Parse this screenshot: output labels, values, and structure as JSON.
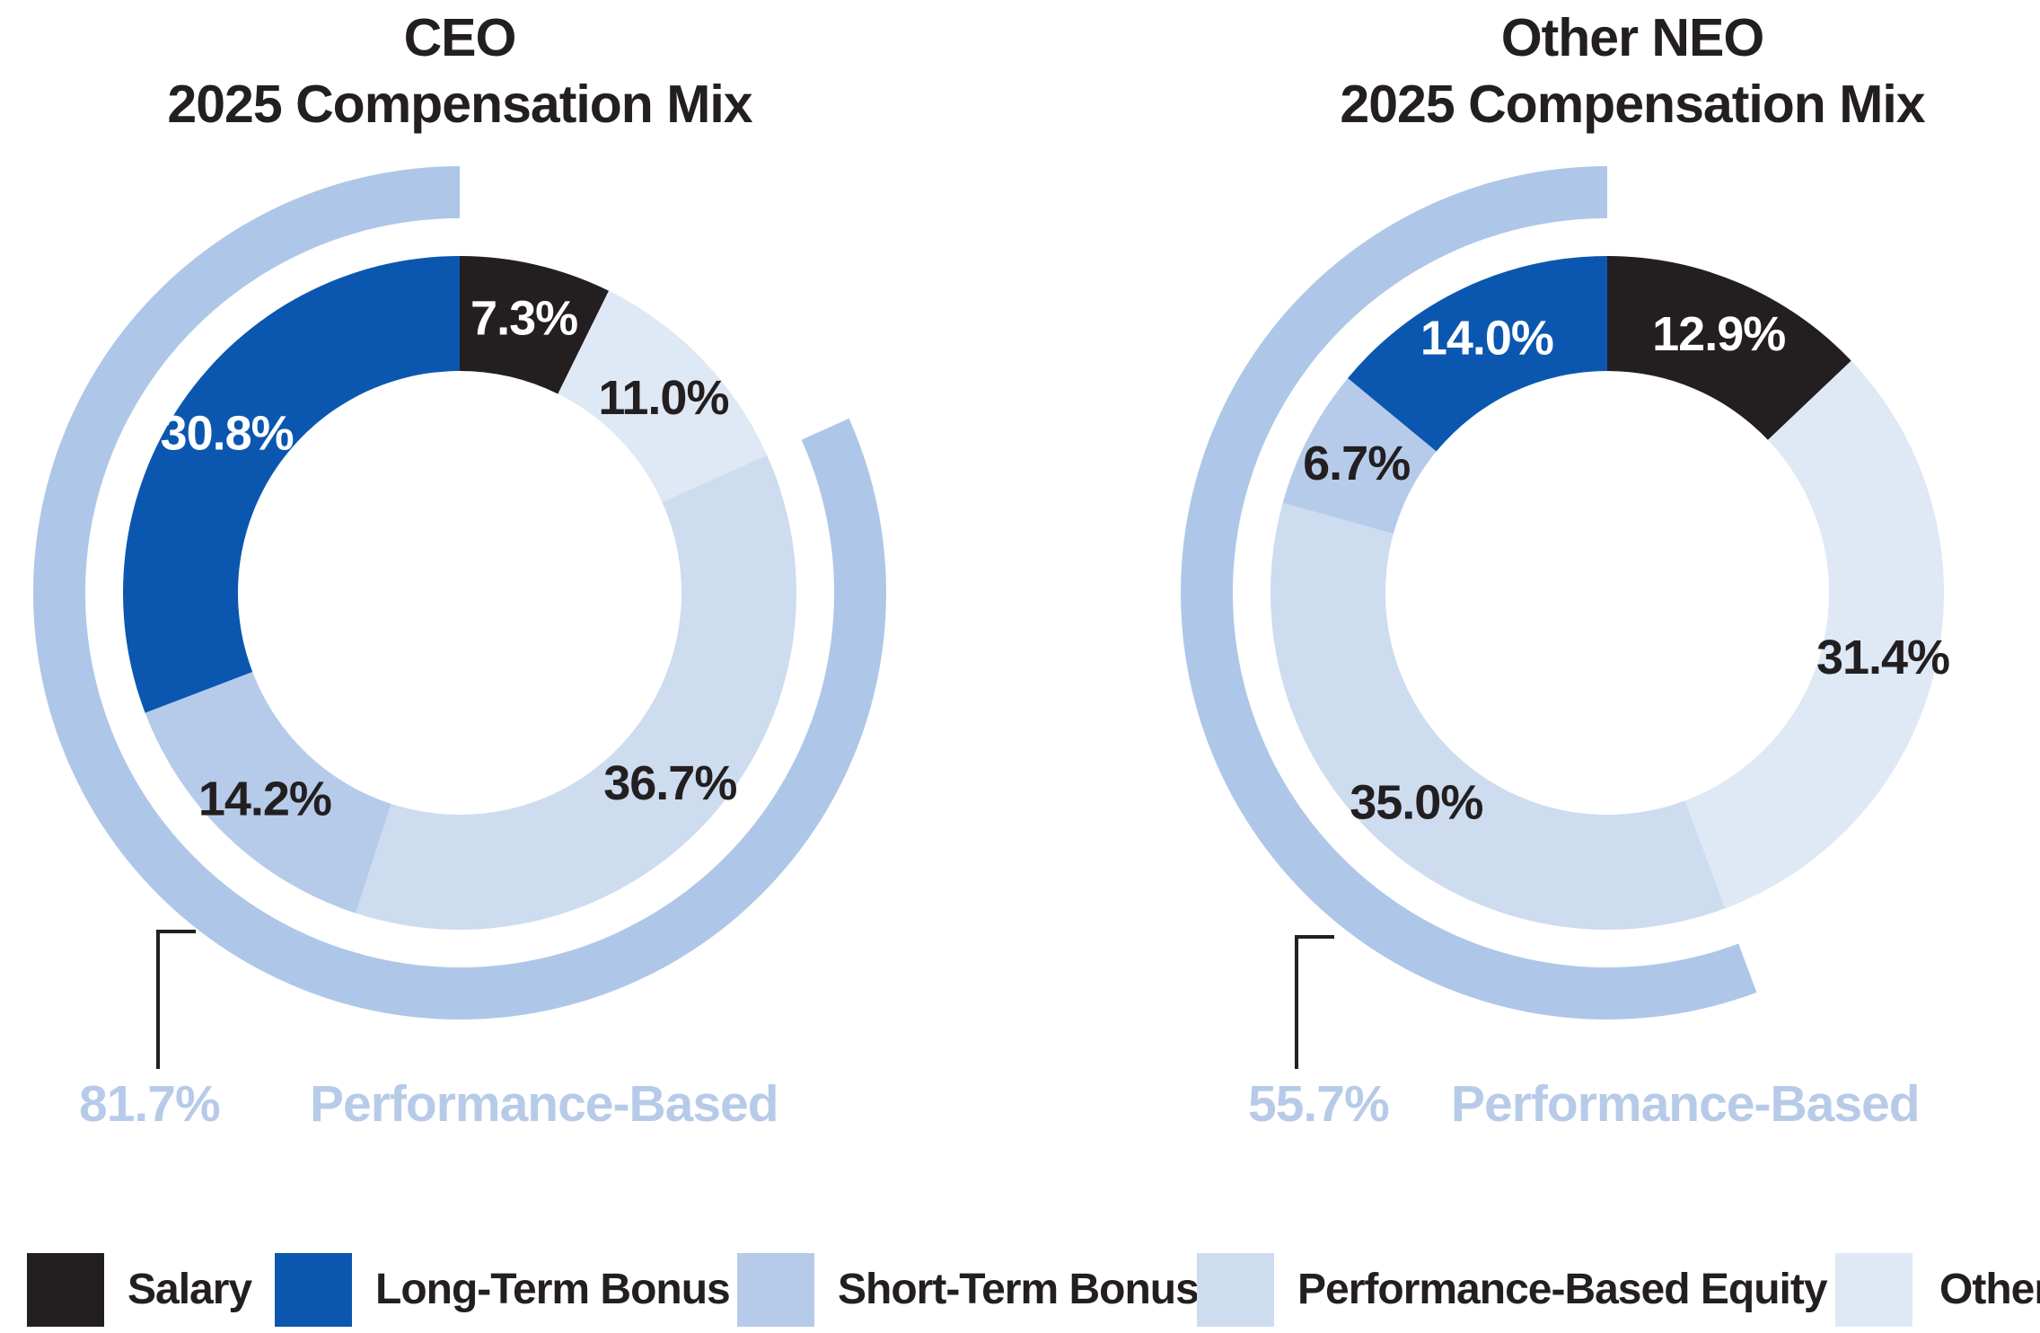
{
  "figure_background": "#ffffff",
  "chart_data": [
    {
      "id": "ceo",
      "type": "pie",
      "variant": "donut-with-outer-highlight-arc",
      "title": "CEO 2025 Compensation Mix",
      "title_lines": [
        "CEO",
        "2025 Compensation Mix"
      ],
      "units": "percent",
      "start": "12 o'clock",
      "direction": "clockwise",
      "slices_clockwise_from_top": [
        {
          "category": "Salary",
          "value": 7.3,
          "label": "7.3%",
          "color": "#231f20",
          "label_color": "#ffffff"
        },
        {
          "category": "Other",
          "value": 11.0,
          "label": "11.0%",
          "color": "#dfe8f5",
          "label_color": "#231f20"
        },
        {
          "category": "Performance-Based Equity",
          "value": 36.7,
          "label": "36.7%",
          "color": "#cedcf0",
          "label_color": "#231f20"
        },
        {
          "category": "Short-Term Bonus",
          "value": 14.2,
          "label": "14.2%",
          "color": "#b6cbea",
          "label_color": "#231f20"
        },
        {
          "category": "Long-Term Bonus",
          "value": 30.8,
          "label": "30.8%",
          "color": "#0b57b0",
          "label_color": "#ffffff"
        }
      ],
      "outer_arc": {
        "value": 81.7,
        "label": "81.7%",
        "caption": "Performance-Based",
        "includes": [
          "Long-Term Bonus",
          "Short-Term Bonus",
          "Performance-Based Equity"
        ],
        "color": "#aec7e8"
      }
    },
    {
      "id": "neo",
      "type": "pie",
      "variant": "donut-with-outer-highlight-arc",
      "title": "Other NEO 2025 Compensation Mix",
      "title_lines": [
        "Other NEO",
        "2025 Compensation Mix"
      ],
      "units": "percent",
      "start": "12 o'clock",
      "direction": "clockwise",
      "slices_clockwise_from_top": [
        {
          "category": "Salary",
          "value": 12.9,
          "label": "12.9%",
          "color": "#231f20",
          "label_color": "#ffffff"
        },
        {
          "category": "Other",
          "value": 31.4,
          "label": "31.4%",
          "color": "#dfe8f5",
          "label_color": "#231f20"
        },
        {
          "category": "Performance-Based Equity",
          "value": 35.0,
          "label": "35.0%",
          "color": "#cedcf0",
          "label_color": "#231f20"
        },
        {
          "category": "Short-Term Bonus",
          "value": 6.7,
          "label": "6.7%",
          "color": "#b6cbea",
          "label_color": "#231f20"
        },
        {
          "category": "Long-Term Bonus",
          "value": 14.0,
          "label": "14.0%",
          "color": "#0b57b0",
          "label_color": "#ffffff"
        }
      ],
      "outer_arc": {
        "value": 55.7,
        "label": "55.7%",
        "caption": "Performance-Based",
        "includes": [
          "Long-Term Bonus",
          "Short-Term Bonus",
          "Performance-Based Equity"
        ],
        "color": "#aec7e8"
      }
    }
  ],
  "legend": {
    "position": "bottom",
    "items": [
      {
        "label": "Salary",
        "color": "#231f20"
      },
      {
        "label": "Long-Term Bonus",
        "color": "#0b57b0"
      },
      {
        "label": "Short-Term Bonus",
        "color": "#b6cbea"
      },
      {
        "label": "Performance-Based Equity",
        "color": "#cedcf0"
      },
      {
        "label": "Other",
        "color": "#dfe8f5"
      }
    ]
  },
  "colors": {
    "outer_arc": "#aec7e8",
    "callout_text": "#b7cbe9",
    "callout_line": "#231f20",
    "label_on_dark": "#ffffff",
    "label_on_light": "#231f20",
    "background": "#ffffff"
  }
}
